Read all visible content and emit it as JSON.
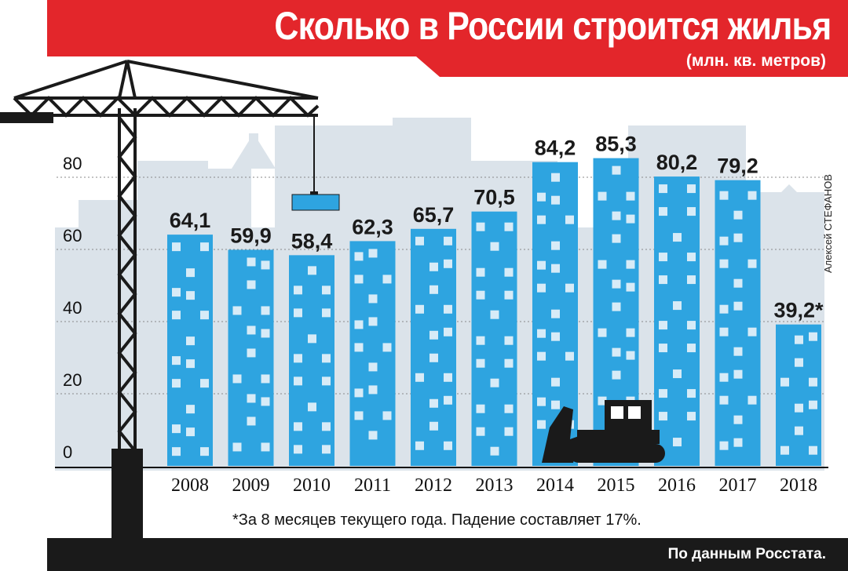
{
  "title": "Сколько в России строится жилья",
  "subtitle": "(млн. кв. метров)",
  "credit": "Алексей СТЕФАНОВ",
  "footnote": "*За 8 месяцев текущего года. Падение составляет 17%.",
  "source": "По данным Росстата.",
  "colors": {
    "banner": "#e3262b",
    "bar": "#2ea4e0",
    "window": "#d7ebf7",
    "skyline": "#dbe3ea",
    "crane": "#1a1a1a"
  },
  "chart_data": {
    "type": "bar",
    "categories": [
      "2008",
      "2009",
      "2010",
      "2011",
      "2012",
      "2013",
      "2014",
      "2015",
      "2016",
      "2017",
      "2018"
    ],
    "values": [
      64.1,
      59.9,
      58.4,
      62.3,
      65.7,
      70.5,
      84.2,
      85.3,
      80.2,
      79.2,
      39.2
    ],
    "labels": [
      "64,1",
      "59,9",
      "58,4",
      "62,3",
      "65,7",
      "70,5",
      "84,2",
      "85,3",
      "80,2",
      "79,2",
      "39,2*"
    ],
    "yticks": [
      0,
      20,
      40,
      60,
      80
    ],
    "ylim": [
      0,
      90
    ],
    "grid": true
  }
}
